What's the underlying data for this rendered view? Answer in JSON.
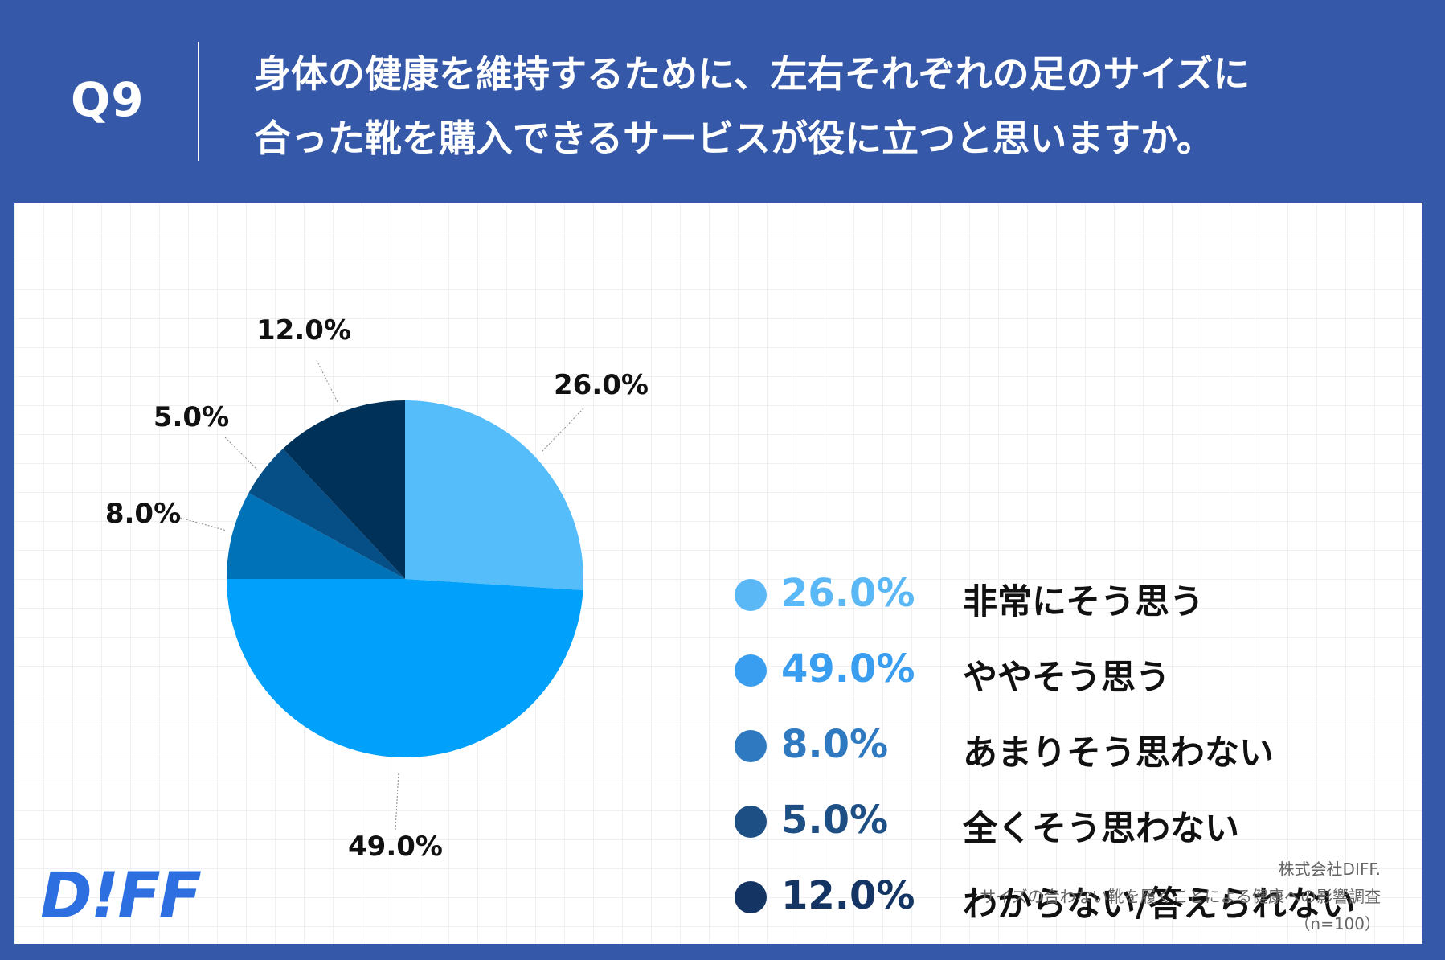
{
  "header": {
    "question_number": "Q9",
    "title_line1": "身体の健康を維持するために、左右それぞれの足のサイズに",
    "title_line2": "合った靴を購入できるサービスが役に立つと思いますか。"
  },
  "chart_data": {
    "type": "pie",
    "categories": [
      "非常にそう思う",
      "ややそう思う",
      "あまりそう思わない",
      "全くそう思わない",
      "わからない/答えられない"
    ],
    "values": [
      26.0,
      49.0,
      8.0,
      5.0,
      12.0
    ],
    "labels": [
      "26.0%",
      "49.0%",
      "8.0%",
      "5.0%",
      "12.0%"
    ],
    "colors": [
      "#56bdfb",
      "#00a0fb",
      "#0072b7",
      "#064e86",
      "#003159"
    ],
    "legend_colors": [
      "#5ab8f6",
      "#3a9ef0",
      "#2e79bf",
      "#1d4f85",
      "#143563"
    ],
    "legend_placement": "right",
    "start_angle": "12 o'clock",
    "direction": "clockwise",
    "grid": true
  },
  "branding": {
    "logo_text": "D!FF",
    "source_line1": "株式会社DIFF.",
    "source_line2": "サイズの合わない靴を履くことによる健康への影響調査",
    "source_line3": "（n=100）"
  }
}
